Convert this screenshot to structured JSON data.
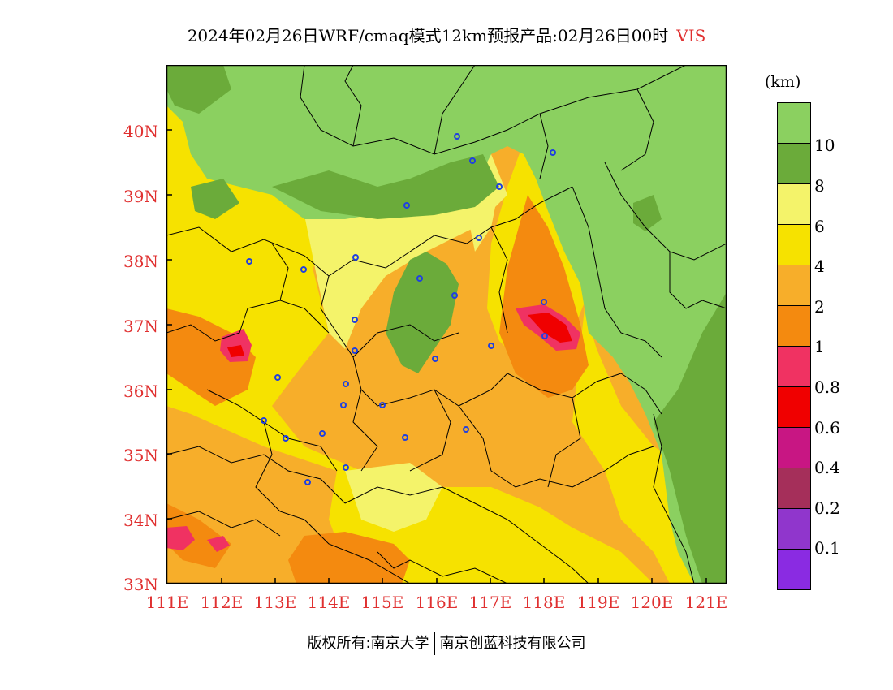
{
  "title": {
    "text": "2024年02月26日WRF/cmaq模式12km预报产品:02月26日00时",
    "variable": "VIS"
  },
  "lat_labels": [
    "40N",
    "39N",
    "38N",
    "37N",
    "36N",
    "35N",
    "34N",
    "33N"
  ],
  "lon_labels": [
    "111E",
    "112E",
    "113E",
    "114E",
    "115E",
    "116E",
    "117E",
    "118E",
    "119E",
    "120E",
    "121E"
  ],
  "colorbar": {
    "unit": "(km)",
    "colors": [
      "#8bd060",
      "#6bab3a",
      "#f4f36a",
      "#f6e200",
      "#f7ae2a",
      "#f48a0f",
      "#f03262",
      "#f00000",
      "#c81683",
      "#a52f5a",
      "#9036cc",
      "#8a2be2"
    ],
    "labels": [
      "10",
      "8",
      "6",
      "4",
      "2",
      "1",
      "0.8",
      "0.6",
      "0.4",
      "0.2",
      "0.1"
    ]
  },
  "footer": {
    "copyright": "版权所有:南京大学",
    "company": "南京创蓝科技有限公司"
  }
}
